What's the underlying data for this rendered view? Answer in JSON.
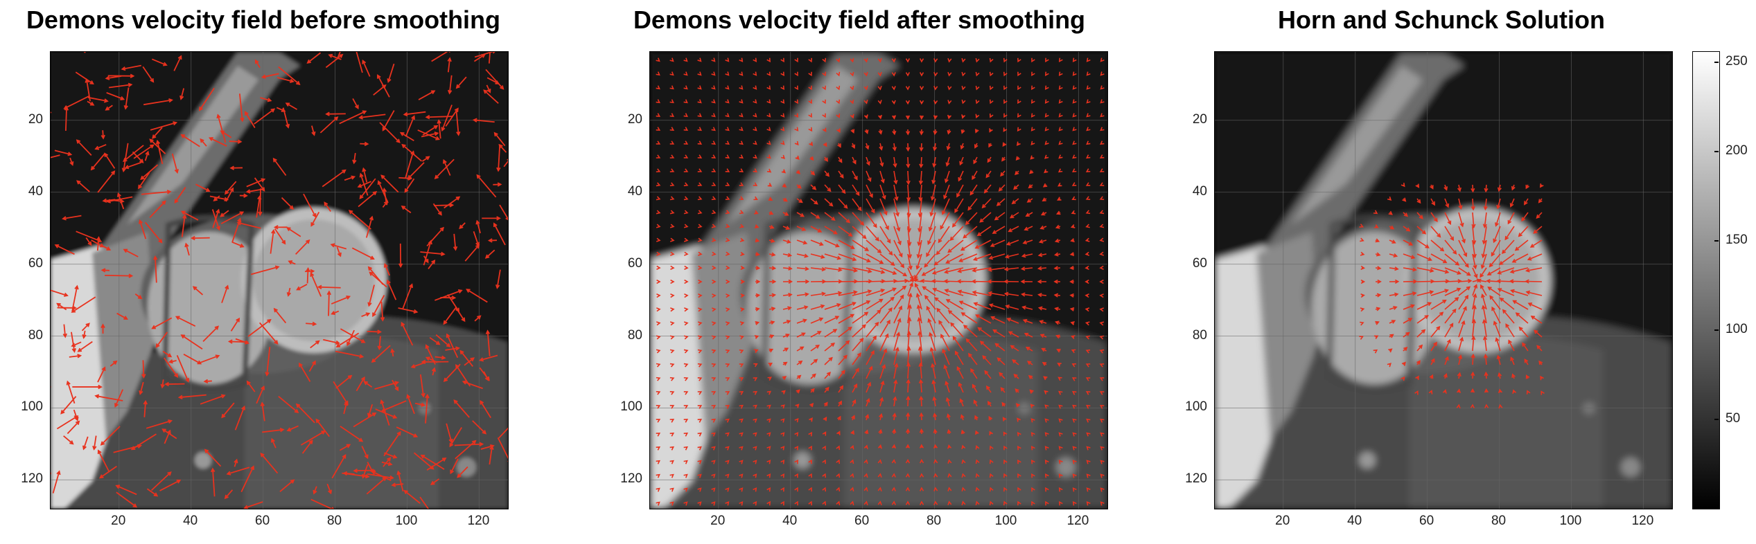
{
  "panels": [
    {
      "title": "Demons velocity field before smoothing",
      "field": "noisy"
    },
    {
      "title": "Demons velocity field after smoothing",
      "field": "smooth"
    },
    {
      "title": "Horn and Schunck Solution",
      "field": "horn"
    }
  ],
  "axes": {
    "y_ticks": [
      "20",
      "40",
      "60",
      "80",
      "100",
      "120"
    ],
    "x_ticks": [
      "20",
      "40",
      "60",
      "80",
      "100",
      "120"
    ],
    "range": [
      1,
      128
    ]
  },
  "colorbar": {
    "ticks": [
      "250",
      "200",
      "150",
      "100",
      "50"
    ],
    "range": [
      0,
      256
    ]
  },
  "colors": {
    "arrow": "#e8321e"
  }
}
